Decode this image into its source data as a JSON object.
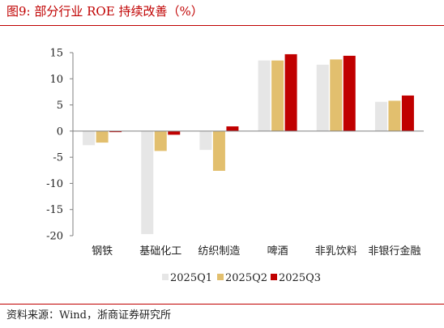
{
  "title": "图9:  部分行业 ROE 持续改善（%）",
  "source": "资料来源：Wind，浙商证券研究所",
  "colors": {
    "accent": "#c00000",
    "series": [
      "#e6e6e6",
      "#e2bf6e",
      "#c00000"
    ]
  },
  "chart_data": {
    "type": "bar",
    "categories": [
      "钢铁",
      "基础化工",
      "纺织制造",
      "啤酒",
      "非乳饮料",
      "非银行金融"
    ],
    "series": [
      {
        "name": "2025Q1",
        "values": [
          -2.7,
          -19.7,
          -3.6,
          13.5,
          12.7,
          5.6
        ]
      },
      {
        "name": "2025Q2",
        "values": [
          -2.2,
          -3.8,
          -7.6,
          13.5,
          13.7,
          5.8
        ]
      },
      {
        "name": "2025Q3",
        "values": [
          -0.2,
          -0.7,
          0.9,
          14.7,
          14.4,
          6.8
        ]
      }
    ],
    "ylim": [
      -20,
      15
    ],
    "yticks": [
      15,
      10,
      5,
      0,
      -5,
      -10,
      -15,
      -20
    ],
    "legend_position": "bottom",
    "grid": false
  }
}
